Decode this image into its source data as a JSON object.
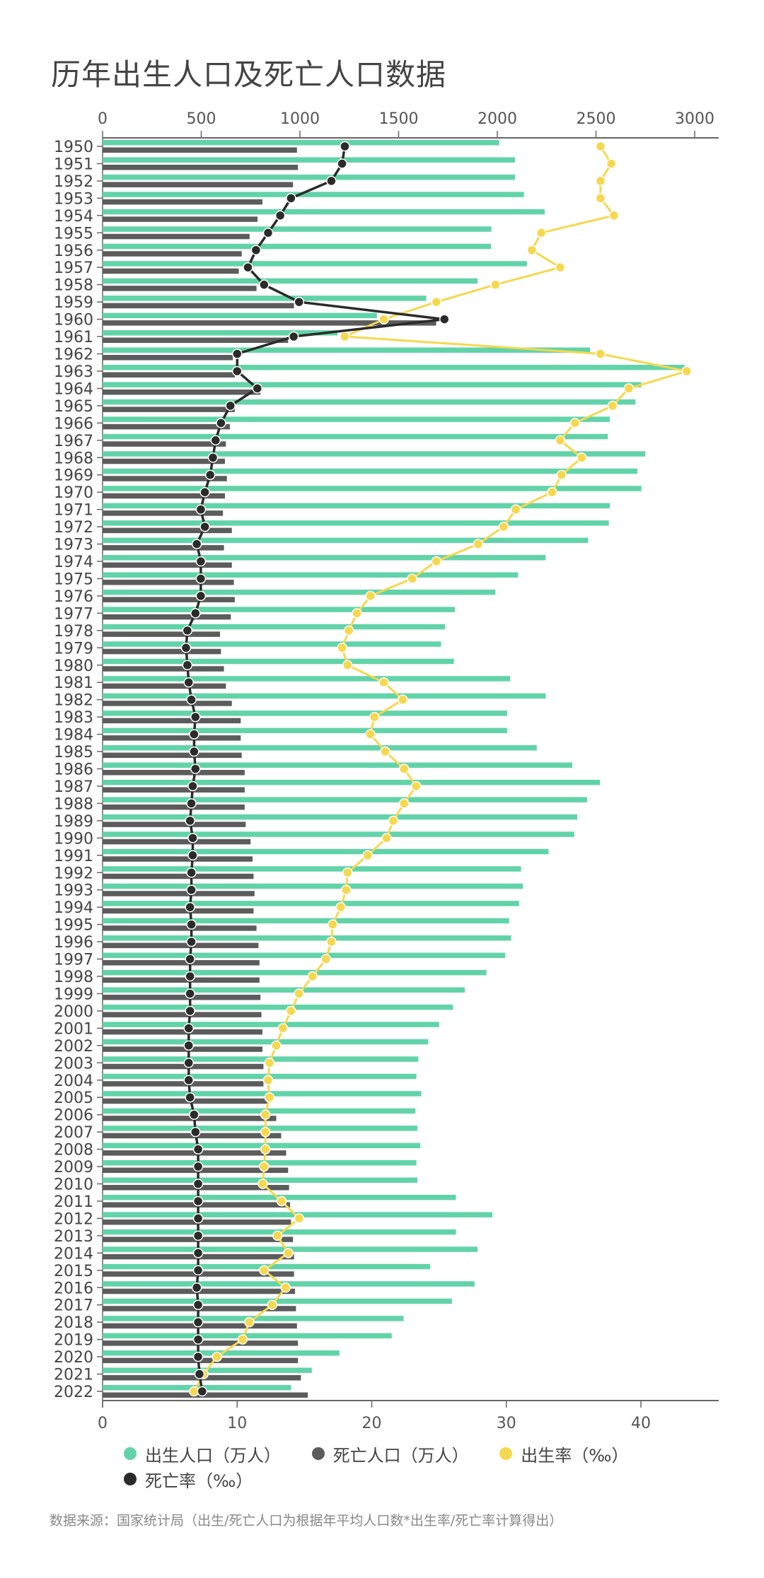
{
  "title": "历年出生人口及死亡人口数据",
  "source": "数据来源：国家统计局（出生/死亡人口为根据年平均人口数*出生率/死亡率计算得出）",
  "chart_data": {
    "type": "bar+line",
    "orientation": "horizontal",
    "categories": [
      1950,
      1951,
      1952,
      1953,
      1954,
      1955,
      1956,
      1957,
      1958,
      1959,
      1960,
      1961,
      1962,
      1963,
      1964,
      1965,
      1966,
      1967,
      1968,
      1969,
      1970,
      1971,
      1972,
      1973,
      1974,
      1975,
      1976,
      1977,
      1978,
      1979,
      1980,
      1981,
      1982,
      1983,
      1984,
      1985,
      1986,
      1987,
      1988,
      1989,
      1990,
      1991,
      1992,
      1993,
      1994,
      1995,
      1996,
      1997,
      1998,
      1999,
      2000,
      2001,
      2002,
      2003,
      2004,
      2005,
      2006,
      2007,
      2008,
      2009,
      2010,
      2011,
      2012,
      2013,
      2014,
      2015,
      2016,
      2017,
      2018,
      2019,
      2020,
      2021,
      2022
    ],
    "top_axis": {
      "range": [
        0,
        3100
      ],
      "ticks": [
        0,
        500,
        1000,
        1500,
        2000,
        2500,
        3000
      ]
    },
    "bottom_axis": {
      "range": [
        0,
        45.5
      ],
      "ticks": [
        0,
        10,
        20,
        30,
        40
      ]
    },
    "legend_position": "bottom",
    "series": [
      {
        "name": "出生人口（万人）",
        "type": "bar",
        "axis": "top",
        "color": "#62d3a9",
        "values": [
          2010,
          2090,
          2090,
          2135,
          2240,
          1970,
          1968,
          2150,
          1900,
          1640,
          1390,
          1190,
          2470,
          2950,
          2730,
          2700,
          2570,
          2560,
          2750,
          2710,
          2730,
          2570,
          2565,
          2460,
          2245,
          2105,
          1990,
          1785,
          1735,
          1715,
          1780,
          2065,
          2245,
          2050,
          2050,
          2200,
          2380,
          2520,
          2455,
          2405,
          2390,
          2260,
          2120,
          2130,
          2110,
          2060,
          2070,
          2040,
          1945,
          1835,
          1775,
          1705,
          1650,
          1600,
          1590,
          1615,
          1585,
          1595,
          1610,
          1590,
          1595,
          1790,
          1975,
          1790,
          1900,
          1660,
          1885,
          1770,
          1525,
          1465,
          1200,
          1060,
          955
        ]
      },
      {
        "name": "死亡人口（万人）",
        "type": "bar",
        "axis": "top",
        "color": "#5c5c5c",
        "values": [
          985,
          990,
          965,
          810,
          785,
          745,
          705,
          690,
          780,
          970,
          1690,
          940,
          660,
          670,
          800,
          670,
          645,
          625,
          620,
          630,
          620,
          610,
          655,
          615,
          655,
          665,
          670,
          650,
          595,
          600,
          615,
          625,
          655,
          700,
          700,
          705,
          720,
          720,
          720,
          725,
          750,
          760,
          765,
          770,
          765,
          780,
          790,
          795,
          795,
          800,
          805,
          810,
          810,
          815,
          815,
          835,
          880,
          905,
          930,
          940,
          945,
          950,
          955,
          965,
          970,
          970,
          975,
          980,
          985,
          990,
          990,
          1005,
          1040
        ]
      },
      {
        "name": "出生率（‰）",
        "type": "line",
        "axis": "bottom",
        "color": "#f5d84f",
        "values": [
          37.0,
          37.8,
          37.0,
          37.0,
          38.0,
          32.6,
          31.9,
          34.0,
          29.2,
          24.8,
          20.9,
          18.0,
          37.0,
          43.4,
          39.1,
          37.9,
          35.1,
          34.0,
          35.6,
          34.1,
          33.4,
          30.7,
          29.8,
          27.9,
          24.8,
          23.0,
          19.9,
          18.9,
          18.3,
          17.8,
          18.2,
          20.9,
          22.3,
          20.2,
          19.9,
          21.0,
          22.4,
          23.3,
          22.4,
          21.6,
          21.1,
          19.7,
          18.2,
          18.1,
          17.7,
          17.1,
          17.0,
          16.6,
          15.6,
          14.6,
          14.0,
          13.4,
          12.9,
          12.4,
          12.3,
          12.4,
          12.1,
          12.1,
          12.1,
          12.0,
          11.9,
          13.3,
          14.6,
          13.0,
          13.8,
          12.0,
          13.6,
          12.6,
          10.9,
          10.4,
          8.5,
          7.5,
          6.8
        ]
      },
      {
        "name": "死亡率（‰）",
        "type": "line",
        "axis": "bottom",
        "color": "#2b2b2b",
        "values": [
          18.0,
          17.8,
          17.0,
          14.0,
          13.2,
          12.3,
          11.4,
          10.8,
          12.0,
          14.6,
          25.4,
          14.2,
          10.0,
          10.0,
          11.5,
          9.5,
          8.8,
          8.4,
          8.2,
          8.0,
          7.6,
          7.3,
          7.6,
          7.0,
          7.3,
          7.3,
          7.3,
          6.9,
          6.3,
          6.2,
          6.3,
          6.4,
          6.6,
          6.9,
          6.8,
          6.8,
          6.9,
          6.7,
          6.6,
          6.5,
          6.7,
          6.7,
          6.6,
          6.6,
          6.5,
          6.6,
          6.6,
          6.5,
          6.5,
          6.5,
          6.5,
          6.4,
          6.4,
          6.4,
          6.4,
          6.5,
          6.8,
          6.9,
          7.1,
          7.1,
          7.1,
          7.1,
          7.1,
          7.1,
          7.1,
          7.1,
          7.0,
          7.1,
          7.1,
          7.1,
          7.1,
          7.2,
          7.4
        ]
      }
    ]
  }
}
